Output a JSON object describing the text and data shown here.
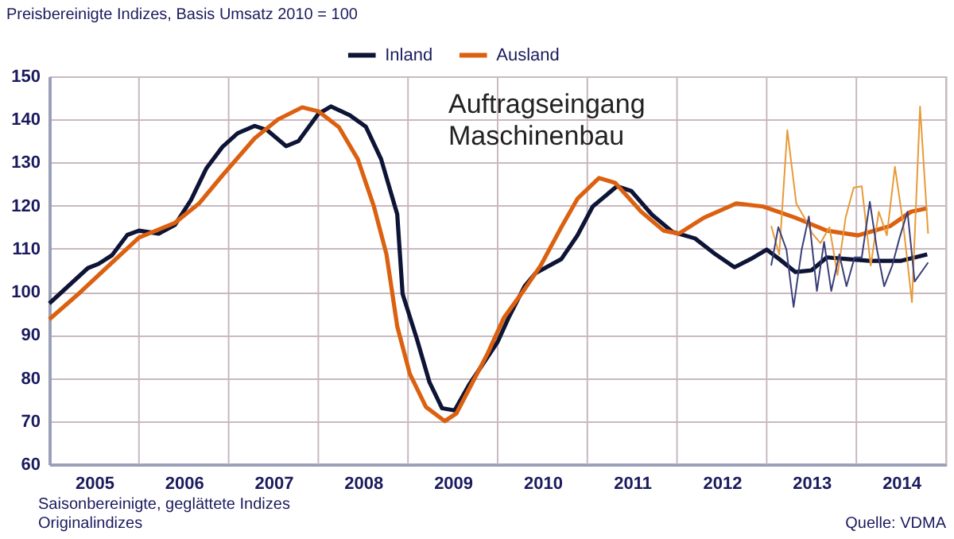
{
  "chart_data": {
    "type": "line",
    "title": "Auftragseingang Maschinenbau",
    "ylabel": "Preisbereinigte Indizes, Basis Umsatz 2010 = 100",
    "xlim": [
      2005,
      2015
    ],
    "xticks": [
      {
        "value": 2005.5,
        "label": "2005"
      },
      {
        "value": 2006.5,
        "label": "2006"
      },
      {
        "value": 2007.5,
        "label": "2007"
      },
      {
        "value": 2008.5,
        "label": "2008"
      },
      {
        "value": 2009.5,
        "label": "2009"
      },
      {
        "value": 2010.5,
        "label": "2010"
      },
      {
        "value": 2011.5,
        "label": "2011"
      },
      {
        "value": 2012.5,
        "label": "2012"
      },
      {
        "value": 2013.5,
        "label": "2013"
      },
      {
        "value": 2014.5,
        "label": "2014"
      },
      {
        "value": 2006,
        "label": null
      },
      {
        "value": 2007,
        "label": null
      },
      {
        "value": 2008,
        "label": null
      },
      {
        "value": 2009,
        "label": null
      },
      {
        "value": 2010,
        "label": null
      },
      {
        "value": 2011,
        "label": null
      },
      {
        "value": 2012,
        "label": null
      },
      {
        "value": 2013,
        "label": null
      },
      {
        "value": 2014,
        "label": null
      }
    ],
    "ylim": [
      60,
      150
    ],
    "yticks": [
      60,
      70,
      80,
      90,
      100,
      110,
      120,
      130,
      140,
      150
    ],
    "grid": true,
    "legend": "top",
    "line_style": "solid",
    "marker": "none",
    "series": [
      {
        "name": "Inland",
        "color": "#0d1436",
        "x": [
          2005.0,
          2005.43,
          2005.55,
          2005.7,
          2005.87,
          2006.0,
          2006.22,
          2006.4,
          2006.58,
          2006.75,
          2006.93,
          2007.1,
          2007.29,
          2007.43,
          2007.64,
          2007.78,
          2008.0,
          2008.14,
          2008.35,
          2008.53,
          2008.7,
          2008.88,
          2008.94,
          2009.1,
          2009.24,
          2009.38,
          2009.52,
          2009.68,
          2010.0,
          2010.12,
          2010.3,
          2010.42,
          2010.71,
          2010.89,
          2011.06,
          2011.33,
          2011.49,
          2011.72,
          2011.95,
          2012.2,
          2012.43,
          2012.64,
          2012.82,
          2013.0,
          2013.14,
          2013.32,
          2013.5,
          2013.67,
          2013.9,
          2014.15,
          2014.5,
          2014.79
        ],
        "values": [
          97.3,
          105.5,
          106.5,
          108.5,
          113.2,
          114.2,
          113.5,
          115.5,
          121.3,
          128.6,
          133.6,
          136.8,
          138.5,
          137.5,
          133.8,
          135,
          141.3,
          143,
          141,
          138.3,
          130.8,
          118,
          99.5,
          89,
          79,
          73,
          72.5,
          78.4,
          88.4,
          93.9,
          101.3,
          104.3,
          107.6,
          113.1,
          119.8,
          124.5,
          123.4,
          117.9,
          113.9,
          112.4,
          108.7,
          105.7,
          107.6,
          109.8,
          107.6,
          104.6,
          105,
          108,
          107.6,
          107.2,
          107.2,
          108.7
        ]
      },
      {
        "name": "Ausland",
        "color": "#db6010",
        "x": [
          2005.0,
          2005.34,
          2005.7,
          2006.0,
          2006.4,
          2006.67,
          2006.93,
          2007.29,
          2007.55,
          2007.82,
          2008.0,
          2008.23,
          2008.44,
          2008.62,
          2008.76,
          2008.88,
          2009.02,
          2009.2,
          2009.41,
          2009.54,
          2009.72,
          2009.89,
          2010.07,
          2010.3,
          2010.48,
          2010.71,
          2010.89,
          2011.13,
          2011.31,
          2011.6,
          2011.85,
          2012.02,
          2012.3,
          2012.66,
          2012.96,
          2013.32,
          2013.67,
          2014.02,
          2014.38,
          2014.61,
          2014.79
        ],
        "values": [
          93.6,
          99.8,
          106.8,
          112.6,
          116,
          120.5,
          127,
          135.6,
          140,
          142.8,
          141.9,
          138.2,
          130.8,
          119.8,
          108.7,
          92,
          81,
          73.3,
          70,
          71.8,
          79,
          85.8,
          94,
          100.6,
          106.1,
          115,
          121.6,
          126.4,
          125.3,
          118.6,
          114.2,
          113.5,
          117.2,
          120.5,
          119.8,
          117.2,
          114.2,
          113.1,
          115.3,
          118.6,
          119.4
        ]
      },
      {
        "color": "#e89a3a",
        "x": [
          2013.05,
          2013.14,
          2013.23,
          2013.33,
          2013.42,
          2013.51,
          2013.6,
          2013.7,
          2013.79,
          2013.88,
          2013.97,
          2014.06,
          2014.16,
          2014.25,
          2014.34,
          2014.43,
          2014.52,
          2014.62,
          2014.71,
          2014.8
        ],
        "values": [
          115.3,
          108.7,
          137.5,
          120.5,
          117.2,
          113.5,
          111.3,
          115,
          103.9,
          117.2,
          124.2,
          124.5,
          106.1,
          118.6,
          113.1,
          129,
          116.1,
          97.6,
          143,
          113.5
        ]
      },
      {
        "color": "#3a3f7a",
        "x": [
          2013.05,
          2013.13,
          2013.22,
          2013.3,
          2013.39,
          2013.47,
          2013.56,
          2013.64,
          2013.72,
          2013.81,
          2013.89,
          2013.98,
          2014.06,
          2014.15,
          2014.23,
          2014.31,
          2014.4,
          2014.48,
          2014.57,
          2014.65,
          2014.8
        ],
        "values": [
          106.1,
          115,
          109.8,
          96.5,
          109.8,
          117.5,
          100.2,
          111.6,
          100.2,
          108.7,
          101.3,
          108,
          108,
          120.9,
          109.8,
          101.3,
          106.1,
          112.4,
          118.6,
          102.4,
          106.8
        ]
      }
    ],
    "annotations": [
      "Saisonbereinigte, geglättete Indizes",
      "Originalindizes",
      "Quelle: VDMA"
    ]
  }
}
